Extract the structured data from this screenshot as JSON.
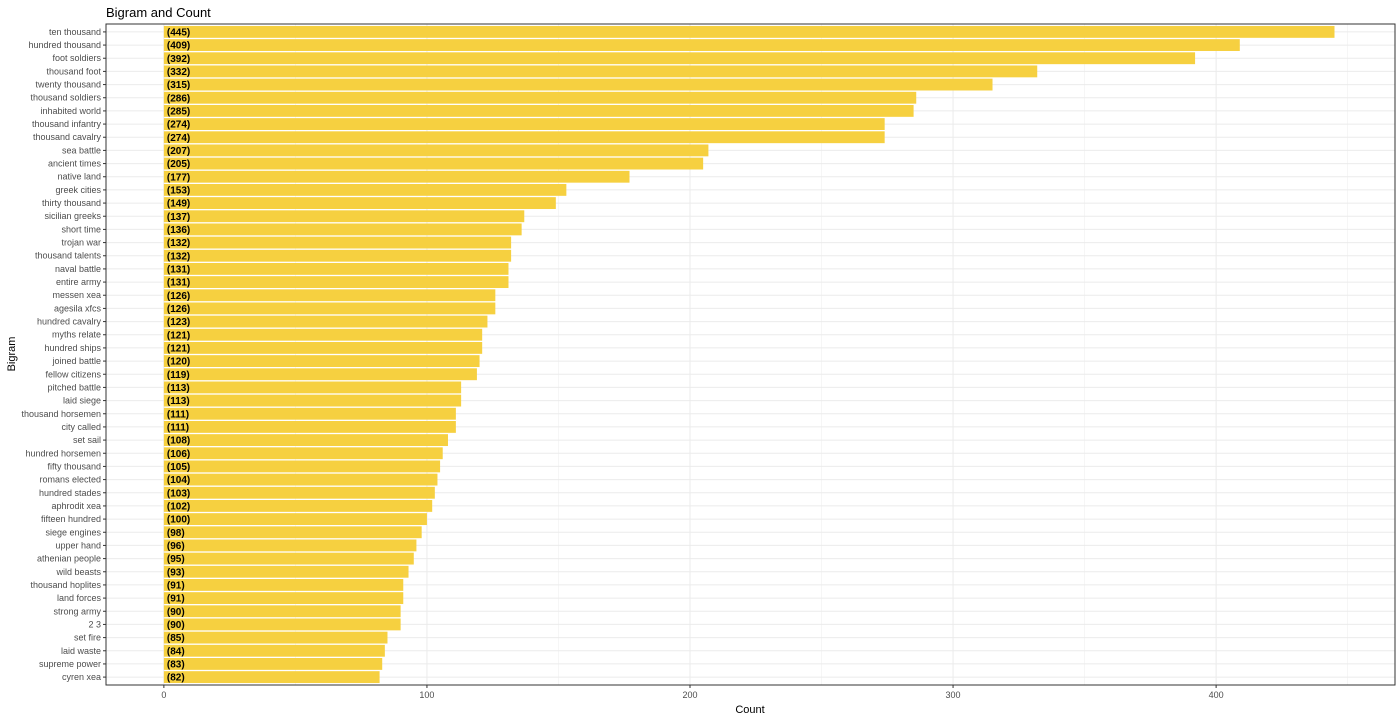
{
  "chart_data": {
    "type": "bar",
    "orientation": "horizontal",
    "title": "Bigram and Count",
    "xlabel": "Count",
    "ylabel": "Bigram",
    "xlim": [
      -22,
      468
    ],
    "xticks": [
      0,
      100,
      200,
      300,
      400
    ],
    "grid": true,
    "legend": "none",
    "bar_color": "#F6D040",
    "categories": [
      "ten thousand",
      "hundred thousand",
      "foot soldiers",
      "thousand foot",
      "twenty thousand",
      "thousand soldiers",
      "inhabited world",
      "thousand infantry",
      "thousand cavalry",
      "sea battle",
      "ancient times",
      "native land",
      "greek cities",
      "thirty thousand",
      "sicilian greeks",
      "short time",
      "trojan war",
      "thousand talents",
      "naval battle",
      "entire army",
      "messen xea",
      "agesila xfcs",
      "hundred cavalry",
      "myths relate",
      "hundred ships",
      "joined battle",
      "fellow citizens",
      "pitched battle",
      "laid siege",
      "thousand horsemen",
      "city called",
      "set sail",
      "hundred horsemen",
      "fifty thousand",
      "romans elected",
      "hundred stades",
      "aphrodit xea",
      "fifteen hundred",
      "siege engines",
      "upper hand",
      "athenian people",
      "wild beasts",
      "thousand hoplites",
      "land forces",
      "strong army",
      "2 3",
      "set fire",
      "laid waste",
      "supreme power",
      "cyren xea"
    ],
    "values": [
      445,
      409,
      392,
      332,
      315,
      286,
      285,
      274,
      274,
      207,
      205,
      177,
      153,
      149,
      137,
      136,
      132,
      132,
      131,
      131,
      126,
      126,
      123,
      121,
      121,
      120,
      119,
      113,
      113,
      111,
      111,
      108,
      106,
      105,
      104,
      103,
      102,
      100,
      98,
      96,
      95,
      93,
      91,
      91,
      90,
      90,
      85,
      84,
      83,
      82
    ],
    "data_labels": [
      "(445)",
      "(409)",
      "(392)",
      "(332)",
      "(315)",
      "(286)",
      "(285)",
      "(274)",
      "(274)",
      "(207)",
      "(205)",
      "(177)",
      "(153)",
      "(149)",
      "(137)",
      "(136)",
      "(132)",
      "(132)",
      "(131)",
      "(131)",
      "(126)",
      "(126)",
      "(123)",
      "(121)",
      "(121)",
      "(120)",
      "(119)",
      "(113)",
      "(113)",
      "(111)",
      "(111)",
      "(108)",
      "(106)",
      "(105)",
      "(104)",
      "(103)",
      "(102)",
      "(100)",
      "(98)",
      "(96)",
      "(95)",
      "(93)",
      "(91)",
      "(91)",
      "(90)",
      "(90)",
      "(85)",
      "(84)",
      "(83)",
      "(82)"
    ]
  }
}
